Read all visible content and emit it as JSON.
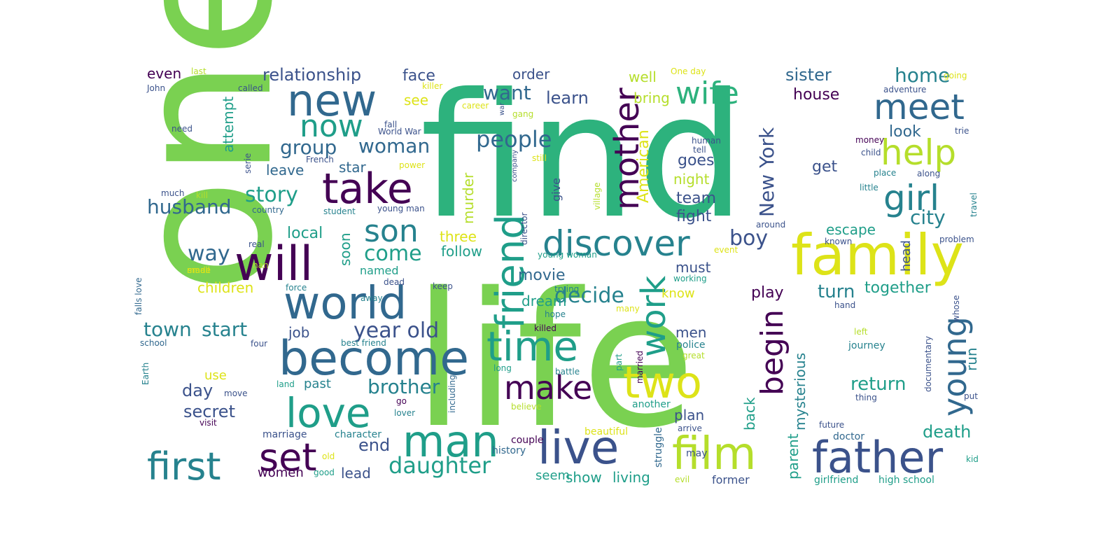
{
  "palette": {
    "dark_purple": "#440154",
    "indigo": "#3b528b",
    "steel_blue": "#31688e",
    "teal_blue": "#26828e",
    "teal": "#1f9e89",
    "green_teal": "#2db27d",
    "green": "#6ece58",
    "light_green": "#7ad151",
    "lime": "#b5de2b",
    "yellow": "#dde318"
  },
  "words": [
    "find",
    "life",
    "one",
    "family",
    "take",
    "new",
    "will",
    "world",
    "become",
    "love",
    "man",
    "live",
    "father",
    "film",
    "two",
    "time",
    "make",
    "discover",
    "friend",
    "work",
    "mother",
    "wife",
    "meet",
    "help",
    "girl",
    "young",
    "begin",
    "set",
    "first",
    "son",
    "now",
    "daughter",
    "people",
    "story",
    "husband",
    "way",
    "come",
    "woman",
    "group",
    "decide",
    "year old",
    "boy",
    "city",
    "New York",
    "brother",
    "return",
    "turn",
    "together",
    "death",
    "end",
    "start",
    "town",
    "secret",
    "day",
    "children",
    "relationship",
    "face",
    "order",
    "learn",
    "want",
    "home",
    "sister",
    "house",
    "look",
    "get",
    "goes",
    "night",
    "team",
    "fight",
    "escape",
    "play",
    "movie",
    "murder",
    "three",
    "local",
    "soon",
    "follow",
    "named",
    "leave",
    "star",
    "attempt",
    "even",
    "see",
    "well",
    "bring",
    "American",
    "job",
    "men",
    "must",
    "know",
    "dream",
    "run",
    "head",
    "parent",
    "mysterious",
    "back",
    "plan",
    "show",
    "living",
    "seem",
    "lead",
    "women",
    "past",
    "use",
    "former",
    "girlfriend",
    "high school",
    "last",
    "John",
    "called",
    "killer",
    "career",
    "war",
    "gang",
    "One day",
    "going",
    "adventure",
    "trie",
    "need",
    "fall",
    "World War",
    "French",
    "power",
    "still",
    "human",
    "tell",
    "money",
    "child",
    "place",
    "along",
    "little",
    "serie",
    "much",
    "kill",
    "country",
    "student",
    "young man",
    "director",
    "give",
    "village",
    "company",
    "around",
    "travel",
    "problem",
    "known",
    "event",
    "real",
    "nan",
    "small",
    "falls love",
    "made",
    "force",
    "dead",
    "away",
    "keep",
    "young woman",
    "trying",
    "working",
    "hand",
    "whose",
    "killed",
    "hope",
    "many",
    "school",
    "four",
    "best friend",
    "Earth",
    "including",
    "part",
    "married",
    "police",
    "great",
    "documentary",
    "left",
    "journey",
    "long",
    "battle",
    "move",
    "land",
    "go",
    "lover",
    "believe",
    "another",
    "arrive",
    "future",
    "thing",
    "put",
    "visit",
    "marriage",
    "character",
    "beautiful",
    "struggle",
    "doctor",
    "old",
    "couple",
    "history",
    "may",
    "kid",
    "good",
    "evil"
  ]
}
